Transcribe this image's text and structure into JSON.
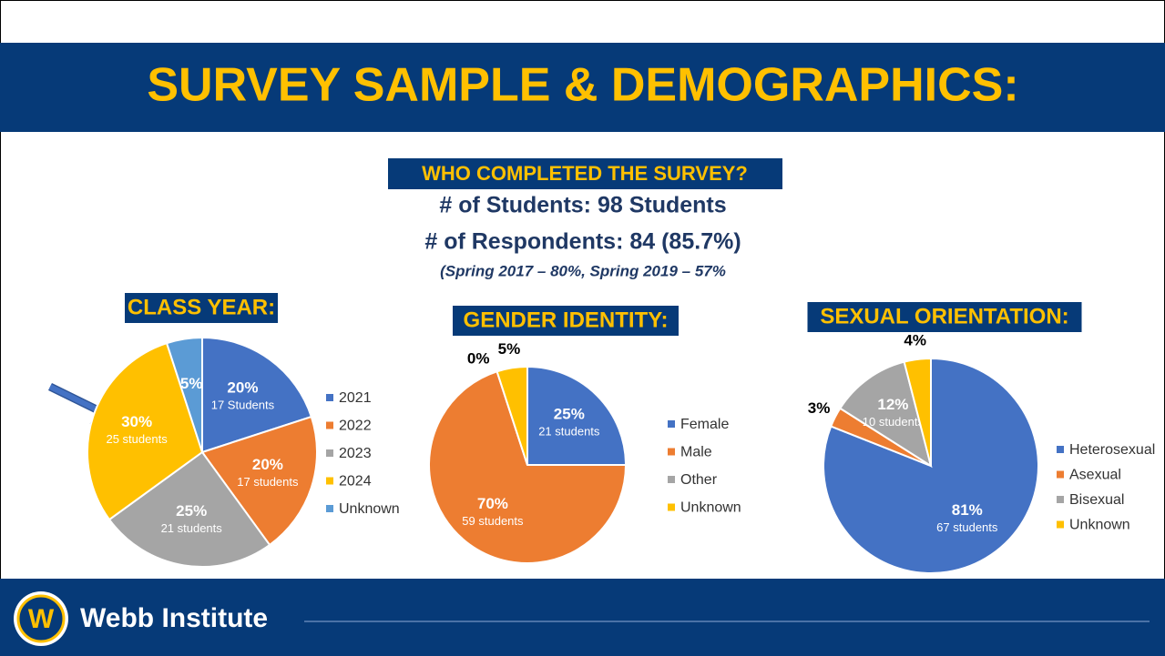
{
  "header": {
    "title": "SURVEY SAMPLE & DEMOGRAPHICS:"
  },
  "summary": {
    "heading": "WHO COMPLETED THE SURVEY?",
    "students": "# of Students: 98 Students",
    "respondents": "# of Respondents: 84 (85.7%)",
    "note": "(Spring 2017 – 80%, Spring 2019 – 57%"
  },
  "footer": {
    "name": "Webb Institute"
  },
  "chart_data": [
    {
      "type": "pie",
      "title": "CLASS YEAR:",
      "categories": [
        "2021",
        "2022",
        "2023",
        "2024",
        "Unknown"
      ],
      "values": [
        20,
        20,
        25,
        30,
        5
      ],
      "value_labels": [
        "20%",
        "20%",
        "25%",
        "30%",
        "5%"
      ],
      "count_labels": [
        "17 Students",
        "17 students",
        "21 students",
        "25 students",
        null
      ],
      "colors": [
        "#4472c4",
        "#ed7d31",
        "#a5a5a5",
        "#ffc000",
        "#5b9bd5"
      ]
    },
    {
      "type": "pie",
      "title": "GENDER IDENTITY:",
      "categories": [
        "Female",
        "Male",
        "Other",
        "Unknown"
      ],
      "values": [
        25,
        70,
        0,
        5
      ],
      "value_labels": [
        "25%",
        "70%",
        "0%",
        "5%"
      ],
      "count_labels": [
        "21 students",
        "59 students",
        null,
        null
      ],
      "colors": [
        "#4472c4",
        "#ed7d31",
        "#a5a5a5",
        "#ffc000"
      ]
    },
    {
      "type": "pie",
      "title": "SEXUAL ORIENTATION:",
      "categories": [
        "Heterosexual",
        "Asexual",
        "Bisexual",
        "Unknown"
      ],
      "values": [
        81,
        3,
        12,
        4
      ],
      "value_labels": [
        "81%",
        "3%",
        "12%",
        "4%"
      ],
      "count_labels": [
        "67 students",
        null,
        "10 students",
        null
      ],
      "colors": [
        "#4472c4",
        "#ed7d31",
        "#a5a5a5",
        "#ffc000"
      ]
    }
  ]
}
